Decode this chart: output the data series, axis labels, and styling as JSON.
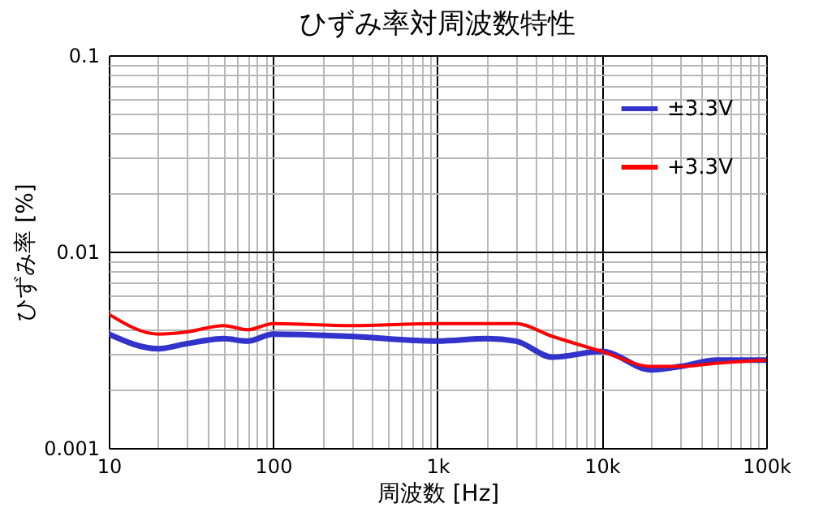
{
  "chart_data": {
    "type": "line",
    "title": "ひずみ率対周波数特性",
    "xlabel": "周波数 [Hz]",
    "ylabel": "ひずみ率 [%]",
    "log": "xy",
    "xlim": [
      10,
      100000
    ],
    "ylim": [
      0.001,
      0.1
    ],
    "xticks": [
      10,
      100,
      {
        "value": 1000,
        "label": "1k"
      },
      {
        "value": 10000,
        "label": "10k"
      },
      {
        "value": 100000,
        "label": "100k"
      }
    ],
    "yticks": [
      0.001,
      0.01,
      0.1
    ],
    "grid": true,
    "legend": "top right",
    "marker": "none",
    "line_style": "solid",
    "series": [
      {
        "name": "±3.3V",
        "color": "#3333cc",
        "x": [
          10,
          20,
          30,
          50,
          70,
          100,
          300,
          1000,
          2000,
          3000,
          5000,
          10000,
          20000,
          30000,
          50000,
          100000
        ],
        "values": [
          0.0038,
          0.0032,
          0.0034,
          0.0036,
          0.0035,
          0.0038,
          0.0037,
          0.0035,
          0.0036,
          0.0035,
          0.0029,
          0.0031,
          0.0025,
          0.0026,
          0.0028,
          0.0028
        ]
      },
      {
        "name": "+3.3V",
        "color": "#ff0000",
        "x": [
          10,
          20,
          30,
          50,
          70,
          100,
          300,
          1000,
          3000,
          5000,
          10000,
          20000,
          30000,
          50000,
          100000
        ],
        "values": [
          0.0048,
          0.0038,
          0.0039,
          0.0042,
          0.004,
          0.0043,
          0.0042,
          0.0043,
          0.0043,
          0.0037,
          0.0031,
          0.0026,
          0.0026,
          0.0027,
          0.0028
        ]
      }
    ]
  }
}
